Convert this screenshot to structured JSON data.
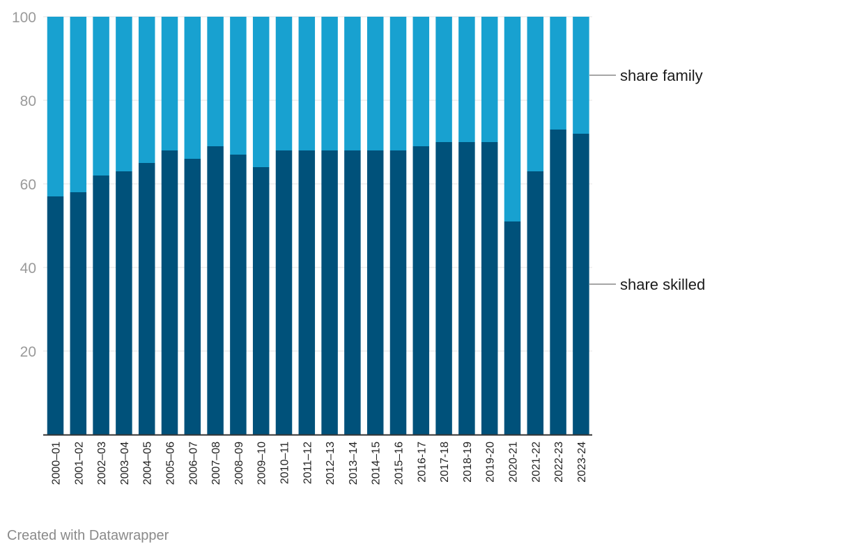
{
  "chart_data": {
    "type": "bar",
    "stacked": true,
    "categories": [
      "2000–01",
      "2001–02",
      "2002–03",
      "2003–04",
      "2004–05",
      "2005–06",
      "2006–07",
      "2007–08",
      "2008–09",
      "2009–10",
      "2010–11",
      "2011–12",
      "2012–13",
      "2013–14",
      "2014–15",
      "2015–16",
      "2016-17",
      "2017-18",
      "2018-19",
      "2019-20",
      "2020-21",
      "2021-22",
      "2022-23",
      "2023-24"
    ],
    "series": [
      {
        "name": "share skilled",
        "color": "#00517a",
        "values": [
          57,
          58,
          62,
          63,
          65,
          68,
          66,
          69,
          67,
          64,
          68,
          68,
          68,
          68,
          68,
          68,
          69,
          70,
          70,
          70,
          51,
          63,
          73,
          72
        ]
      },
      {
        "name": "share family",
        "color": "#18a1d0",
        "values": [
          43,
          42,
          38,
          37,
          35,
          32,
          34,
          31,
          33,
          36,
          32,
          32,
          32,
          32,
          32,
          32,
          31,
          30,
          30,
          30,
          49,
          37,
          27,
          28
        ]
      }
    ],
    "yticks": [
      20,
      40,
      60,
      80,
      100
    ],
    "ylim": [
      0,
      100
    ],
    "grid": true,
    "legend": "direct labels right"
  },
  "footer": {
    "credit": "Created with Datawrapper"
  }
}
